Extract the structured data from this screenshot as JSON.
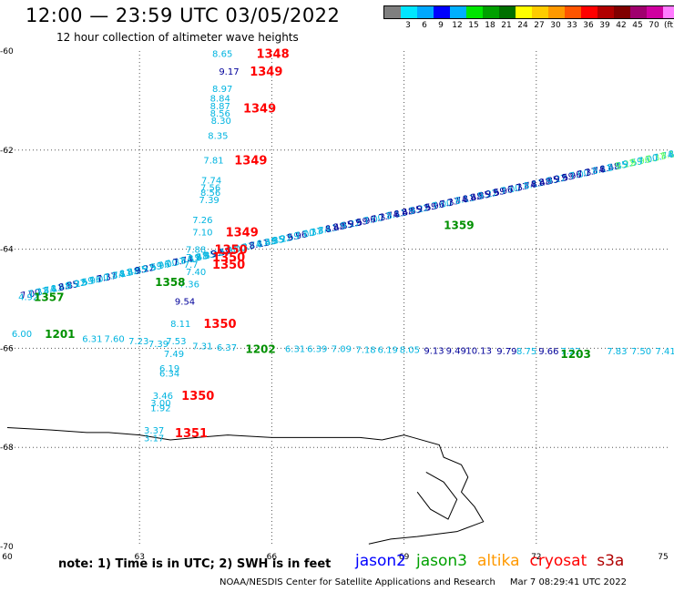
{
  "header": {
    "title": "12:00 — 23:59 UTC 03/05/2022",
    "subtitle": "12 hour collection of altimeter wave heights"
  },
  "legend": {
    "colors": [
      "#7f7f7f",
      "#00e6ff",
      "#00a8ff",
      "#0000ff",
      "#00b0ff",
      "#00e600",
      "#00a000",
      "#007000",
      "#ffff00",
      "#ffcc00",
      "#ff9900",
      "#ff5500",
      "#ff0000",
      "#b00000",
      "#800000",
      "#a0006e",
      "#d000a0",
      "#ff7cff",
      "#000000"
    ],
    "labels": [
      "3",
      "6",
      "9",
      "12",
      "15",
      "18",
      "21",
      "24",
      "27",
      "30",
      "33",
      "36",
      "39",
      "42",
      "45",
      "70"
    ],
    "unit": "(ft)"
  },
  "axes": {
    "x_labels": [
      {
        "lon": 60,
        "text": "60"
      },
      {
        "lon": 63,
        "text": "63"
      },
      {
        "lon": 66,
        "text": "66"
      },
      {
        "lon": 69,
        "text": "69"
      },
      {
        "lon": 72,
        "text": "72"
      },
      {
        "lon": 75,
        "text": "75"
      }
    ],
    "y_labels": [
      {
        "lat": -60,
        "text": "-60"
      },
      {
        "lat": -62,
        "text": "-62"
      },
      {
        "lat": -64,
        "text": "-64"
      },
      {
        "lat": -66,
        "text": "-66"
      },
      {
        "lat": -68,
        "text": "-68"
      },
      {
        "lat": -70,
        "text": "-70"
      }
    ]
  },
  "map_colors": {
    "cyan": "#00b4e0",
    "navy": "#00009a",
    "red": "#ff0000",
    "green": "#009000",
    "lightgreen": "#66ff66",
    "coast": "#000000",
    "grid": "#555555"
  },
  "observations": [
    {
      "text": "8.65",
      "lon": 64.65,
      "lat": -60.05,
      "c": "cyan"
    },
    {
      "text": "9.17",
      "lon": 64.8,
      "lat": -60.4,
      "c": "navy"
    },
    {
      "text": "8.97",
      "lon": 64.65,
      "lat": -60.75,
      "c": "cyan"
    },
    {
      "text": "8.84",
      "lon": 64.6,
      "lat": -60.95,
      "c": "cyan"
    },
    {
      "text": "8.87",
      "lon": 64.6,
      "lat": -61.1,
      "c": "cyan"
    },
    {
      "text": "8.56",
      "lon": 64.6,
      "lat": -61.25,
      "c": "cyan"
    },
    {
      "text": "8.30",
      "lon": 64.62,
      "lat": -61.4,
      "c": "cyan"
    },
    {
      "text": "8.35",
      "lon": 64.55,
      "lat": -61.7,
      "c": "cyan"
    },
    {
      "text": "7.81",
      "lon": 64.45,
      "lat": -62.2,
      "c": "cyan"
    },
    {
      "text": "7.74",
      "lon": 64.4,
      "lat": -62.6,
      "c": "cyan"
    },
    {
      "text": "7.56",
      "lon": 64.38,
      "lat": -62.75,
      "c": "cyan"
    },
    {
      "text": "8.56",
      "lon": 64.38,
      "lat": -62.85,
      "c": "cyan"
    },
    {
      "text": "7.39",
      "lon": 64.35,
      "lat": -63.0,
      "c": "cyan"
    },
    {
      "text": "7.26",
      "lon": 64.2,
      "lat": -63.4,
      "c": "cyan"
    },
    {
      "text": "7.10",
      "lon": 64.2,
      "lat": -63.65,
      "c": "cyan"
    },
    {
      "text": "7.88",
      "lon": 64.05,
      "lat": -64.0,
      "c": "cyan"
    },
    {
      "text": "7.9",
      "lon": 64.05,
      "lat": -64.15,
      "c": "cyan"
    },
    {
      "text": "7.7",
      "lon": 64.0,
      "lat": -64.3,
      "c": "cyan"
    },
    {
      "text": "7.40",
      "lon": 64.05,
      "lat": -64.45,
      "c": "cyan"
    },
    {
      "text": "7.36",
      "lon": 63.9,
      "lat": -64.7,
      "c": "cyan"
    },
    {
      "text": "9.54",
      "lon": 63.8,
      "lat": -65.05,
      "c": "navy"
    },
    {
      "text": "8.11",
      "lon": 63.7,
      "lat": -65.5,
      "c": "cyan"
    },
    {
      "text": "7.53",
      "lon": 63.6,
      "lat": -65.85,
      "c": "cyan"
    },
    {
      "text": "7.49",
      "lon": 63.55,
      "lat": -66.1,
      "c": "cyan"
    },
    {
      "text": "6.19",
      "lon": 63.45,
      "lat": -66.4,
      "c": "cyan"
    },
    {
      "text": "6.34",
      "lon": 63.45,
      "lat": -66.5,
      "c": "cyan"
    },
    {
      "text": "3.46",
      "lon": 63.3,
      "lat": -66.95,
      "c": "cyan"
    },
    {
      "text": "3.00",
      "lon": 63.25,
      "lat": -67.1,
      "c": "cyan"
    },
    {
      "text": "1.92",
      "lon": 63.25,
      "lat": -67.2,
      "c": "cyan"
    },
    {
      "text": "3.37",
      "lon": 63.1,
      "lat": -67.65,
      "c": "cyan"
    },
    {
      "text": "3.17",
      "lon": 63.1,
      "lat": -67.8,
      "c": "cyan"
    },
    {
      "text": "4.92",
      "lon": 60.25,
      "lat": -64.95,
      "c": "cyan"
    },
    {
      "text": "6.00",
      "lon": 60.1,
      "lat": -65.7,
      "c": "cyan"
    },
    {
      "text": "6.31",
      "lon": 61.7,
      "lat": -65.8,
      "c": "cyan"
    },
    {
      "text": "7.60",
      "lon": 62.2,
      "lat": -65.8,
      "c": "cyan"
    },
    {
      "text": "7.23",
      "lon": 62.75,
      "lat": -65.85,
      "c": "cyan"
    },
    {
      "text": "7.39",
      "lon": 63.2,
      "lat": -65.9,
      "c": "cyan"
    },
    {
      "text": "7.31",
      "lon": 64.2,
      "lat": -65.95,
      "c": "cyan"
    },
    {
      "text": "6.37",
      "lon": 64.75,
      "lat": -65.97,
      "c": "cyan"
    },
    {
      "text": "6.31",
      "lon": 66.3,
      "lat": -66.0,
      "c": "cyan"
    },
    {
      "text": "6.39",
      "lon": 66.8,
      "lat": -66.0,
      "c": "cyan"
    },
    {
      "text": "7.09",
      "lon": 67.35,
      "lat": -66.0,
      "c": "cyan"
    },
    {
      "text": "7.18",
      "lon": 67.9,
      "lat": -66.02,
      "c": "cyan"
    },
    {
      "text": "6.19",
      "lon": 68.4,
      "lat": -66.02,
      "c": "cyan"
    },
    {
      "text": "8.05",
      "lon": 68.9,
      "lat": -66.02,
      "c": "cyan"
    },
    {
      "text": "9.13",
      "lon": 69.45,
      "lat": -66.04,
      "c": "navy"
    },
    {
      "text": "9.49",
      "lon": 69.95,
      "lat": -66.04,
      "c": "navy"
    },
    {
      "text": "10.13",
      "lon": 70.4,
      "lat": -66.04,
      "c": "navy"
    },
    {
      "text": "9.79",
      "lon": 71.1,
      "lat": -66.05,
      "c": "navy"
    },
    {
      "text": "8.75",
      "lon": 71.55,
      "lat": -66.05,
      "c": "cyan"
    },
    {
      "text": "9.66",
      "lon": 72.05,
      "lat": -66.05,
      "c": "navy"
    },
    {
      "text": "7.22",
      "lon": 72.55,
      "lat": -66.05,
      "c": "cyan"
    },
    {
      "text": "7.83",
      "lon": 73.6,
      "lat": -66.05,
      "c": "cyan"
    },
    {
      "text": "7.50",
      "lon": 74.15,
      "lat": -66.05,
      "c": "cyan"
    },
    {
      "text": "7.41",
      "lon": 74.7,
      "lat": -66.05,
      "c": "cyan"
    }
  ],
  "passes": [
    {
      "text": "1348",
      "lon": 65.65,
      "lat": -60.05
    },
    {
      "text": "1349",
      "lon": 65.5,
      "lat": -60.4
    },
    {
      "text": "1349",
      "lon": 65.35,
      "lat": -61.15
    },
    {
      "text": "1349",
      "lon": 65.15,
      "lat": -62.2
    },
    {
      "text": "1349",
      "lon": 64.95,
      "lat": -63.65
    },
    {
      "text": "1350",
      "lon": 64.7,
      "lat": -64.0
    },
    {
      "text": "1350",
      "lon": 64.65,
      "lat": -64.15
    },
    {
      "text": "1350",
      "lon": 64.65,
      "lat": -64.3
    },
    {
      "text": "1350",
      "lon": 64.45,
      "lat": -65.5
    },
    {
      "text": "1350",
      "lon": 63.95,
      "lat": -66.95
    },
    {
      "text": "1351",
      "lon": 63.8,
      "lat": -67.7
    }
  ],
  "green_passes": [
    {
      "text": "1201",
      "lon": 60.85,
      "lat": -65.7
    },
    {
      "text": "1202",
      "lon": 65.4,
      "lat": -66.0
    },
    {
      "text": "1203",
      "lon": 72.55,
      "lat": -66.1
    },
    {
      "text": "1359",
      "lon": 69.9,
      "lat": -63.5
    },
    {
      "text": "1358",
      "lon": 63.35,
      "lat": -64.65
    },
    {
      "text": "1357",
      "lon": 60.6,
      "lat": -64.95
    }
  ],
  "track": {
    "start": {
      "lon": 60.3,
      "lat": -64.95
    },
    "end": {
      "lon": 75.0,
      "lat": -62.1
    },
    "count": 86
  },
  "coast_lonlat": [
    [
      60,
      -67.6
    ],
    [
      61,
      -67.65
    ],
    [
      61.8,
      -67.7
    ],
    [
      62.3,
      -67.7
    ],
    [
      63,
      -67.75
    ],
    [
      63.7,
      -67.85
    ],
    [
      64.3,
      -67.8
    ],
    [
      65,
      -67.75
    ],
    [
      66,
      -67.8
    ],
    [
      67,
      -67.8
    ],
    [
      68,
      -67.8
    ],
    [
      68.5,
      -67.85
    ],
    [
      69,
      -67.75
    ],
    [
      69.2,
      -67.8
    ],
    [
      69.8,
      -67.95
    ],
    [
      69.9,
      -68.2
    ],
    [
      70.3,
      -68.35
    ],
    [
      70.45,
      -68.6
    ],
    [
      70.3,
      -68.9
    ],
    [
      70.6,
      -69.2
    ],
    [
      70.8,
      -69.5
    ],
    [
      70.2,
      -69.7
    ],
    [
      69.3,
      -69.8
    ],
    [
      68.7,
      -69.85
    ],
    [
      68.2,
      -69.95
    ]
  ],
  "coast_lonlat_2": [
    [
      69.5,
      -68.5
    ],
    [
      69.9,
      -68.7
    ],
    [
      70.2,
      -69.05
    ],
    [
      70.0,
      -69.45
    ],
    [
      69.6,
      -69.25
    ],
    [
      69.3,
      -68.9
    ]
  ],
  "note": "note:  1) Time is in UTC;  2) SWH is in feet",
  "satellites": [
    {
      "name": "jason2",
      "color": "#0000ff"
    },
    {
      "name": "jason3",
      "color": "#00a000"
    },
    {
      "name": "altika",
      "color": "#ff9900"
    },
    {
      "name": "cryosat",
      "color": "#ff0000"
    },
    {
      "name": "s3a",
      "color": "#b00000"
    }
  ],
  "footer": {
    "credit": "NOAA/NESDIS Center for Satellite Applications and Research",
    "timestamp": "Mar  7 08:29:41 UTC 2022"
  }
}
